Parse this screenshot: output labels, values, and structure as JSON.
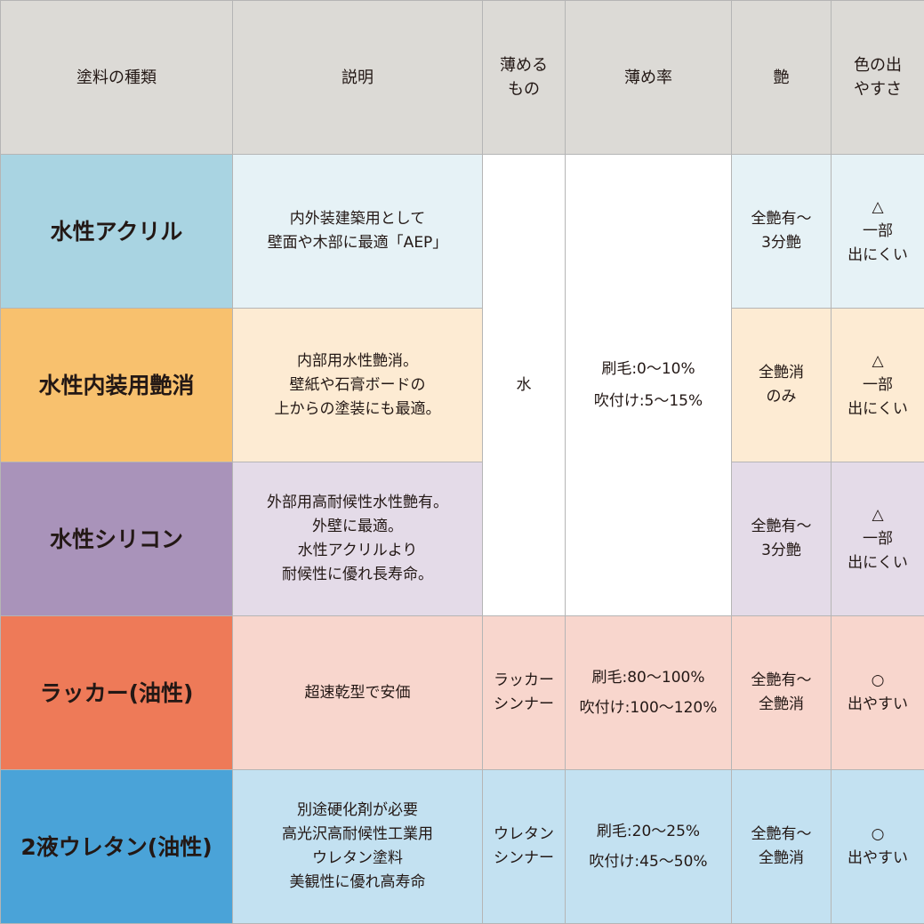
{
  "headers": [
    "塗料の種類",
    "説明",
    "薄める\nもの",
    "薄め率",
    "艶",
    "色の出\nやすさ"
  ],
  "shared": {
    "thinner": "水",
    "rate": "刷毛:0〜10%\n吹付け:5〜15%"
  },
  "rows": [
    {
      "type": "水性アクリル",
      "desc": "内外装建築用として\n壁面や木部に最適「AEP」",
      "gloss": "全艶有〜\n3分艶",
      "color": "△\n一部\n出にくい",
      "type_bg": "#a9d4e2",
      "cell_bg": "#e6f2f6"
    },
    {
      "type": "水性内装用艶消",
      "desc": "内部用水性艶消。\n壁紙や石膏ボードの\n上からの塗装にも最適。",
      "gloss": "全艶消\nのみ",
      "color": "△\n一部\n出にくい",
      "type_bg": "#f8c16e",
      "cell_bg": "#fdebd3"
    },
    {
      "type": "水性シリコン",
      "desc": "外部用高耐候性水性艶有。\n外壁に最適。\n水性アクリルより\n耐候性に優れ長寿命。",
      "gloss": "全艶有〜\n3分艶",
      "color": "△\n一部\n出にくい",
      "type_bg": "#a993ba",
      "cell_bg": "#e4dbe8"
    },
    {
      "type": "ラッカー(油性)",
      "desc": "超速乾型で安価",
      "thinner": "ラッカー\nシンナー",
      "rate": "刷毛:80〜100%\n吹付け:100〜120%",
      "gloss": "全艶有〜\n全艶消",
      "color": "○\n出やすい",
      "type_bg": "#ee7a58",
      "cell_bg": "#f8d6cd"
    },
    {
      "type": "2液ウレタン(油性)",
      "desc": "別途硬化剤が必要\n高光沢高耐候性工業用\nウレタン塗料\n美観性に優れ高寿命",
      "thinner": "ウレタン\nシンナー",
      "rate": "刷毛:20〜25%\n吹付け:45〜50%",
      "gloss": "全艶有〜\n全艶消",
      "color": "○\n出やすい",
      "type_bg": "#4aa3d8",
      "cell_bg": "#c3e1f1"
    }
  ]
}
